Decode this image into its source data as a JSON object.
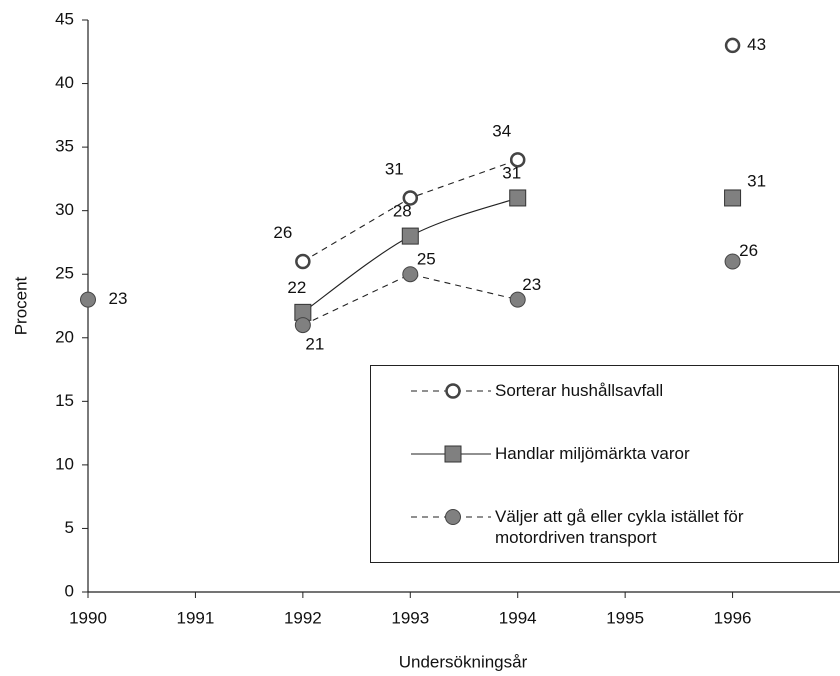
{
  "chart_data": {
    "type": "line",
    "x_label": "Undersökningsår",
    "y_label": "Procent",
    "x": [
      1990,
      1991,
      1992,
      1993,
      1994,
      1995,
      1996
    ],
    "series": [
      {
        "name": "Sorterar hushållsavfall",
        "color": "#808080",
        "line_style": "dashed",
        "marker": "open-circle",
        "smooth": false,
        "values": [
          null,
          null,
          26,
          31,
          34,
          null,
          43
        ]
      },
      {
        "name": "Handlar miljömärkta varor",
        "color": "#808080",
        "line_style": "solid",
        "marker": "square",
        "smooth": true,
        "values": [
          null,
          null,
          22,
          28,
          31,
          null,
          31
        ]
      },
      {
        "name": "Väljer att gå eller cykla istället för motordriven transport",
        "color": "#808080",
        "line_style": "dashed",
        "marker": "filled-circle",
        "smooth": false,
        "values": [
          23,
          null,
          21,
          25,
          23,
          null,
          26
        ]
      }
    ],
    "xlim": [
      1990,
      1997
    ],
    "xticks": [
      1990,
      1991,
      1992,
      1993,
      1994,
      1995,
      1996
    ],
    "ylim": [
      0,
      45
    ],
    "yticks": [
      0,
      5,
      10,
      15,
      20,
      25,
      30,
      35,
      40,
      45
    ],
    "grid": false,
    "legend": "lower right"
  }
}
